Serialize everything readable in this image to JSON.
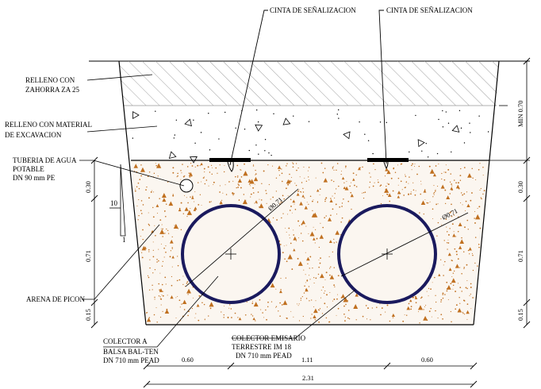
{
  "labels": {
    "cinta_left": "CINTA DE SEÑALIZACION",
    "cinta_right": "CINTA DE SEÑALIZACION",
    "relleno_zahorra_l1": "RELLENO CON",
    "relleno_zahorra_l2": "ZAHORRA ZA 25",
    "relleno_material_l1": "RELLENO CON  MATERIAL",
    "relleno_material_l2": "DE EXCAVACION",
    "tuberia_l1": "TUBERIA DE AGUA",
    "tuberia_l2": "POTABLE",
    "tuberia_l3": "DN 90 mm PE",
    "arena": "ARENA DE PICON",
    "colector_a_l1": "COLECTOR A",
    "colector_a_l2": "BALSA BAL-TEN",
    "colector_a_l3": "DN 710 mm PEAD",
    "colector_e_l1": "COLECTOR EMISARIO",
    "colector_e_l2": "TERRESTRE IM 18",
    "colector_e_l3": "DN 710 mm PEAD"
  },
  "pipe_diameters": {
    "left": "Ø0.71",
    "right": "Ø0.71"
  },
  "slope": {
    "rise": "10",
    "run": "1"
  },
  "dims_left": {
    "top": "0.30",
    "mid": "0.71",
    "bot": "0.15"
  },
  "dims_right": {
    "min": "MIN 0.70",
    "top": "0.30",
    "mid": "0.71",
    "bot": "0.15"
  },
  "dims_bottom": {
    "a": "0.60",
    "b": "1.11",
    "c": "0.60",
    "total": "2.31"
  },
  "colors": {
    "pipe": "#1a1a5e",
    "sand_dots": "#c07020",
    "tape": "#000000"
  }
}
